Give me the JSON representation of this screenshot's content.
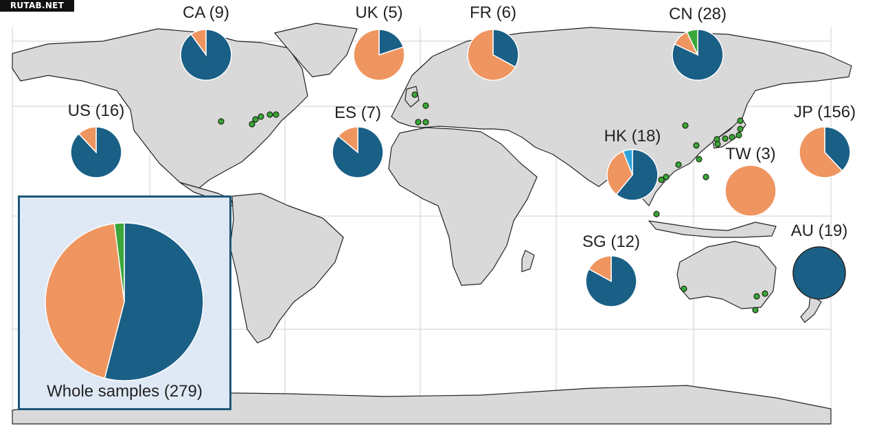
{
  "watermark": "RUTAB.NET",
  "colors": {
    "ocean": "#ffffff",
    "land": "#d9d9d9",
    "border": "#222222",
    "graticule": "#cfcfcf",
    "blue": "#1a5f86",
    "orange": "#ef9560",
    "green": "#3aa63a",
    "cyan": "#2da3dc",
    "inset_bg": "#dfe9f6",
    "inset_border": "#1d5578"
  },
  "pies": [
    {
      "code": "CA",
      "count": "(9)",
      "slices": {
        "blue": 0.9,
        "orange": 0.1
      }
    },
    {
      "code": "UK",
      "count": "(5)",
      "slices": {
        "blue": 0.2,
        "orange": 0.8
      }
    },
    {
      "code": "FR",
      "count": "(6)",
      "slices": {
        "blue": 0.33,
        "orange": 0.67
      }
    },
    {
      "code": "CN",
      "count": "(28)",
      "slices": {
        "blue": 0.82,
        "orange": 0.11,
        "green": 0.07
      }
    },
    {
      "code": "US",
      "count": "(16)",
      "slices": {
        "blue": 0.88,
        "orange": 0.12
      }
    },
    {
      "code": "ES",
      "count": "(7)",
      "slices": {
        "blue": 0.86,
        "orange": 0.14
      }
    },
    {
      "code": "HK",
      "count": "(18)",
      "slices": {
        "blue": 0.61,
        "orange": 0.33,
        "cyan": 0.06
      }
    },
    {
      "code": "TW",
      "count": "(3)",
      "slices": {
        "blue": 0.0,
        "orange": 1.0
      }
    },
    {
      "code": "JP",
      "count": "(156)",
      "slices": {
        "blue": 0.38,
        "orange": 0.62
      }
    },
    {
      "code": "SG",
      "count": "(12)",
      "slices": {
        "blue": 0.83,
        "orange": 0.17
      }
    },
    {
      "code": "AU",
      "count": "(19)",
      "slices": {
        "blue": 1.0,
        "orange": 0.0
      }
    }
  ],
  "whole": {
    "caption": "Whole samples (279)",
    "slices": {
      "blue": 0.54,
      "orange": 0.44,
      "green": 0.02
    }
  },
  "sample_sites": [
    "US-1",
    "US-2",
    "US-3",
    "US-4",
    "US-5",
    "UK-1",
    "UK-2",
    "FR-1",
    "ES-1",
    "ES-2",
    "CN-1",
    "CN-2",
    "CN-3",
    "CN-4",
    "HK-1",
    "HK-2",
    "TW-1",
    "JP-1",
    "JP-2",
    "JP-3",
    "JP-4",
    "JP-5",
    "JP-6",
    "JP-7",
    "SG-1",
    "AU-1",
    "AU-2",
    "AU-3",
    "AU-4"
  ]
}
